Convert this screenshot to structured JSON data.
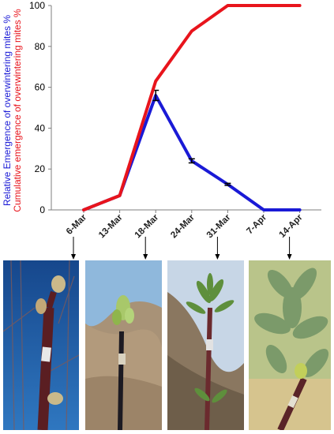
{
  "chart_data": {
    "type": "line",
    "categories": [
      "6-Mar",
      "13-Mar",
      "18-Mar",
      "24-Mar",
      "31-Mar",
      "7-Apr",
      "14-Apr"
    ],
    "series": [
      {
        "name": "Cumulative emergence of overwintering mites %",
        "color": "#e8141c",
        "values": [
          0,
          7,
          63,
          87.5,
          100,
          100,
          100
        ]
      },
      {
        "name": "Relative Emergence of overwintering mites %",
        "color": "#1a1ad6",
        "values": [
          0,
          7,
          56,
          24,
          12.5,
          0,
          0
        ],
        "error": [
          0,
          0,
          2.5,
          1,
          0.5,
          0,
          0
        ]
      }
    ],
    "ylabel_lines": [
      "Relative Emergence of overwintering mites %",
      "Cumulative emergence of overwintering mites %"
    ],
    "ylabel_colors": [
      "#1a1ad6",
      "#e8141c"
    ],
    "ylim": [
      0,
      100
    ],
    "yticks": [
      "0",
      "20",
      "40",
      "60",
      "80",
      "100"
    ],
    "grid": false
  },
  "photos": [
    {
      "stage": "bud-swelling",
      "sky": "#1f5aa0"
    },
    {
      "stage": "green-tip",
      "sky": "#9cc3e0"
    },
    {
      "stage": "leaf-emergence",
      "sky": "#c9d9ea"
    },
    {
      "stage": "expanded-leaves",
      "sky": "#b9c48a"
    }
  ]
}
